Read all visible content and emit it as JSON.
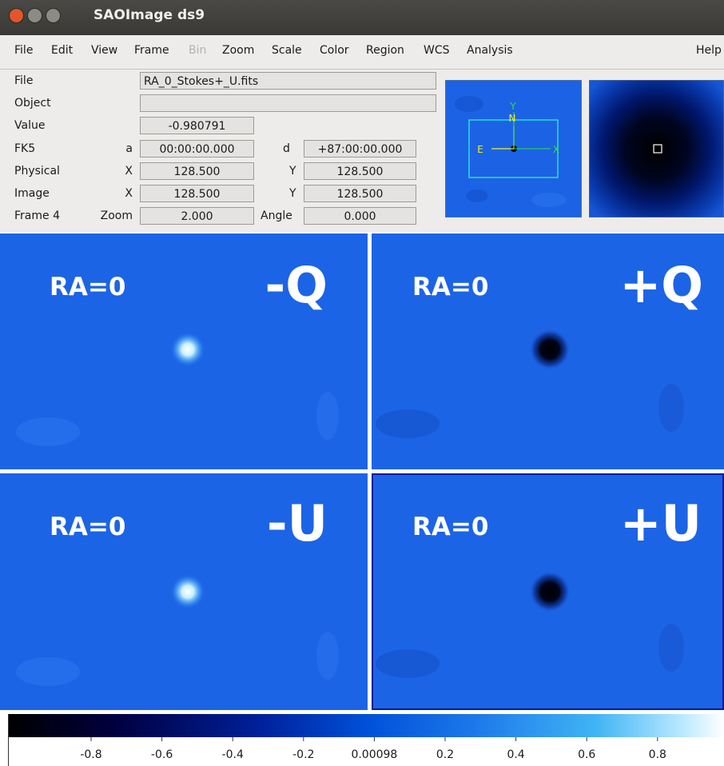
{
  "window": {
    "title": "SAOImage ds9"
  },
  "menu": [
    "File",
    "Edit",
    "View",
    "Frame",
    "Bin",
    "Zoom",
    "Scale",
    "Color",
    "Region",
    "WCS",
    "Analysis",
    "Help"
  ],
  "info": {
    "file": {
      "label": "File",
      "value": "RA_0_Stokes+_U.fits"
    },
    "object": {
      "label": "Object"
    },
    "value": {
      "label": "Value",
      "value": "-0.980791"
    },
    "fk5": {
      "label": "FK5",
      "a_label": "a",
      "a": "00:00:00.000",
      "d_label": "d",
      "d": "+87:00:00.000"
    },
    "physical": {
      "label": "Physical",
      "x_label": "X",
      "x": "128.500",
      "y_label": "Y",
      "y": "128.500"
    },
    "image": {
      "label": "Image",
      "x_label": "X",
      "x": "128.500",
      "y_label": "Y",
      "y": "128.500"
    },
    "frame": {
      "label": "Frame 4",
      "zoom_label": "Zoom",
      "zoom": "2.000",
      "angle_label": "Angle",
      "angle": "0.000"
    }
  },
  "panner": {
    "north": "N",
    "east": "E",
    "y_axis": "Y",
    "x_axis": "X"
  },
  "frames": [
    {
      "label": "RA=0",
      "stokes": "-Q"
    },
    {
      "label": "RA=0",
      "stokes": "+Q"
    },
    {
      "label": "RA=0",
      "stokes": "-U"
    },
    {
      "label": "RA=0",
      "stokes": "+U"
    }
  ],
  "colorbar": {
    "ticks": [
      "-0.8",
      "-0.6",
      "-0.4",
      "-0.2",
      "0.00098",
      "0.2",
      "0.4",
      "0.6",
      "0.8"
    ]
  }
}
